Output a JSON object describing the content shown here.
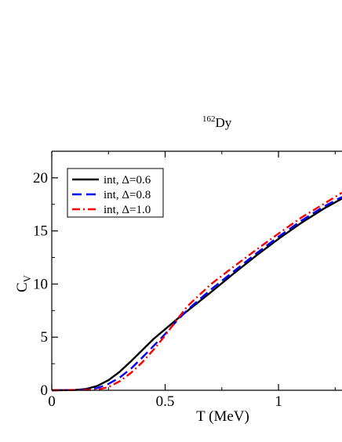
{
  "chart_data": {
    "type": "line",
    "title_sup": "162",
    "title_main": "Dy",
    "xlabel": "T (MeV)",
    "ylabel_main": "C",
    "ylabel_sub": "V",
    "xlim": [
      0,
      1.28
    ],
    "ylim": [
      0,
      22.5
    ],
    "xticks": [
      0,
      0.5,
      1
    ],
    "xtick_labels": [
      "0",
      "0.5",
      "1"
    ],
    "yticks": [
      0,
      5,
      10,
      15,
      20
    ],
    "ytick_labels": [
      "0",
      "5",
      "10",
      "15",
      "20"
    ],
    "grid": false,
    "legend_position": "top-left",
    "series": [
      {
        "name": "int, Δ=0.6",
        "color": "#000000",
        "style": "solid",
        "x": [
          0,
          0.1,
          0.15,
          0.2,
          0.25,
          0.3,
          0.35,
          0.4,
          0.45,
          0.5,
          0.55,
          0.6,
          0.7,
          0.8,
          0.9,
          1.0,
          1.1,
          1.2,
          1.28
        ],
        "y": [
          0,
          0.02,
          0.12,
          0.4,
          0.95,
          1.75,
          2.75,
          3.8,
          4.85,
          5.75,
          6.65,
          7.5,
          9.2,
          10.95,
          12.65,
          14.25,
          15.75,
          17.1,
          18.05
        ]
      },
      {
        "name": "int, Δ=0.8",
        "color": "#0000ff",
        "style": "dashed",
        "x": [
          0,
          0.15,
          0.2,
          0.25,
          0.3,
          0.35,
          0.4,
          0.45,
          0.5,
          0.55,
          0.6,
          0.7,
          0.8,
          0.9,
          1.0,
          1.1,
          1.2,
          1.28
        ],
        "y": [
          0,
          0.05,
          0.2,
          0.6,
          1.2,
          2.05,
          3.1,
          4.2,
          5.3,
          6.5,
          7.6,
          9.45,
          11.15,
          12.85,
          14.45,
          15.95,
          17.3,
          18.2
        ]
      },
      {
        "name": "int, Δ=1.0",
        "color": "#ff0000",
        "style": "dashdot",
        "x": [
          0,
          0.2,
          0.25,
          0.3,
          0.35,
          0.4,
          0.45,
          0.5,
          0.55,
          0.6,
          0.7,
          0.8,
          0.9,
          1.0,
          1.1,
          1.2,
          1.28
        ],
        "y": [
          0,
          0.05,
          0.3,
          0.85,
          1.65,
          2.65,
          3.85,
          5.15,
          6.6,
          7.95,
          9.95,
          11.6,
          13.2,
          14.75,
          16.25,
          17.55,
          18.6
        ]
      }
    ]
  }
}
